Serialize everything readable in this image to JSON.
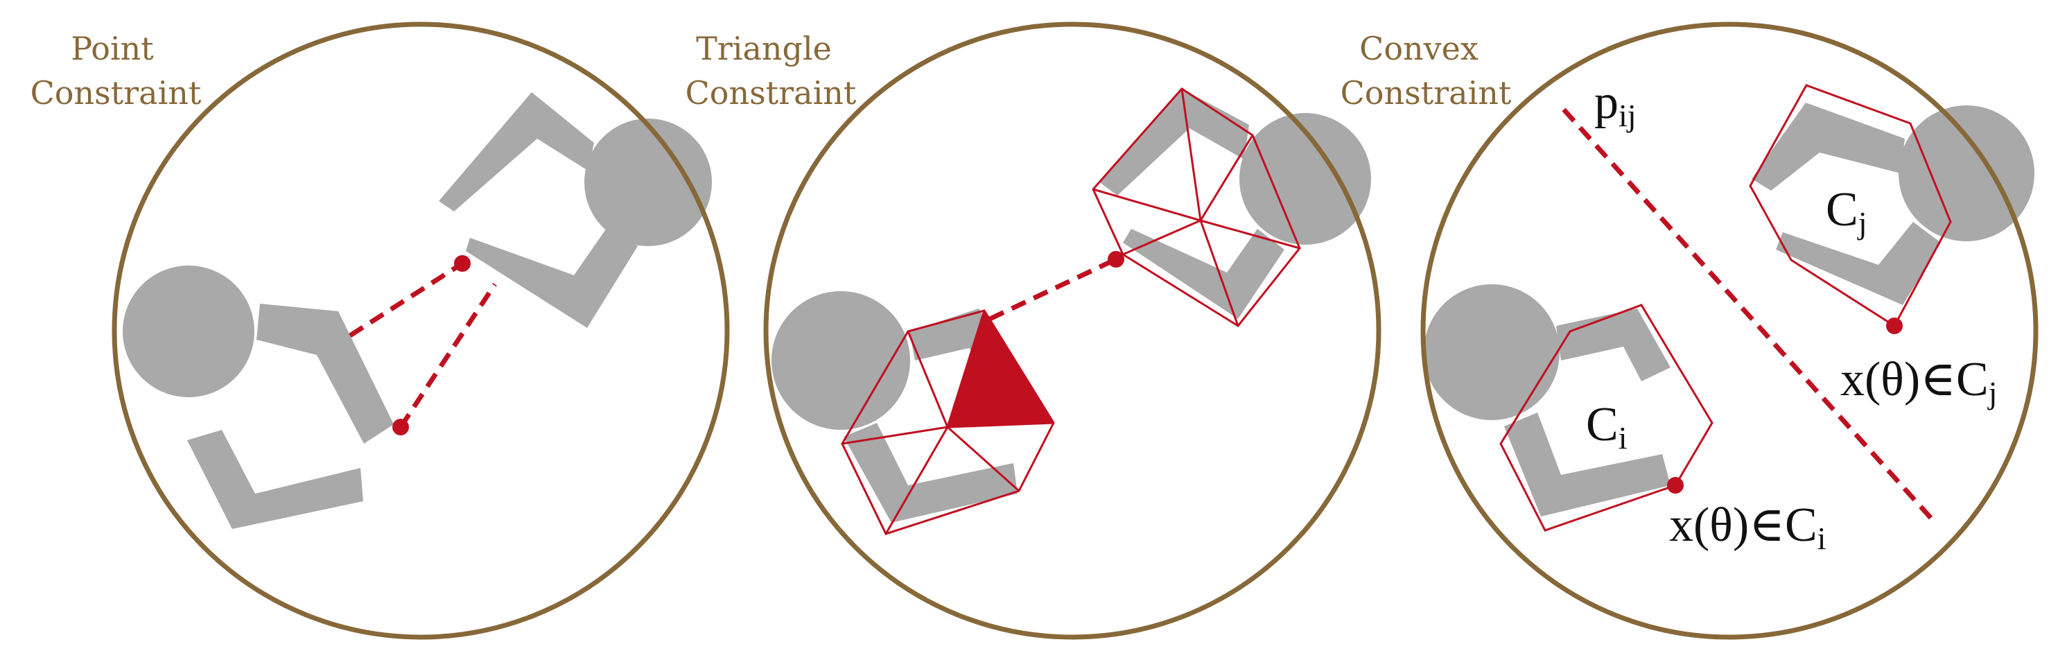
{
  "panels": [
    {
      "title_line1": "Point",
      "title_line2": "Constraint"
    },
    {
      "title_line1": "Triangle",
      "title_line2": "Constraint"
    },
    {
      "title_line1": "Convex",
      "title_line2": "Constraint"
    }
  ],
  "convex_labels": {
    "separator": {
      "base": "p",
      "sub": "ij"
    },
    "set_j": {
      "base": "C",
      "sub": "j"
    },
    "set_i": {
      "base": "C",
      "sub": "i"
    },
    "membership_j": {
      "base": "x(θ)∈C",
      "sub": "j"
    },
    "membership_i": {
      "base": "x(θ)∈C",
      "sub": "i"
    }
  },
  "colors": {
    "circle_border": "#876839",
    "title_text": "#876839",
    "robot_gray": "#a9a9a9",
    "constraint_red": "#c01020",
    "background": "#ffffff"
  }
}
